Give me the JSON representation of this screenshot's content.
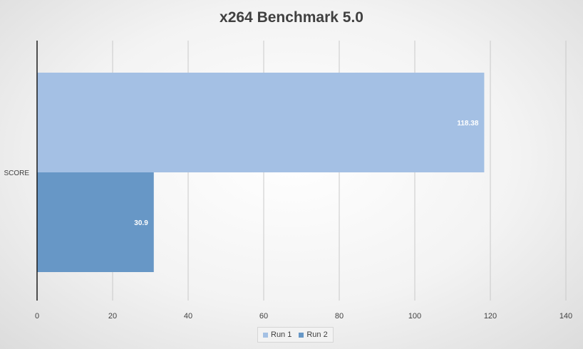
{
  "chart_data": {
    "type": "bar",
    "orientation": "horizontal",
    "title": "x264 Benchmark 5.0",
    "categories": [
      "SCORE"
    ],
    "series": [
      {
        "name": "Run 1",
        "values": [
          118.38
        ],
        "color": "#a4c0e4"
      },
      {
        "name": "Run 2",
        "values": [
          30.9
        ],
        "color": "#6797c6"
      }
    ],
    "data_labels": [
      "118.38",
      "30.9"
    ],
    "xlim": [
      0,
      140
    ],
    "xticks": [
      0,
      20,
      40,
      60,
      80,
      100,
      120,
      140
    ],
    "grid": "vertical",
    "legend_position": "bottom"
  }
}
